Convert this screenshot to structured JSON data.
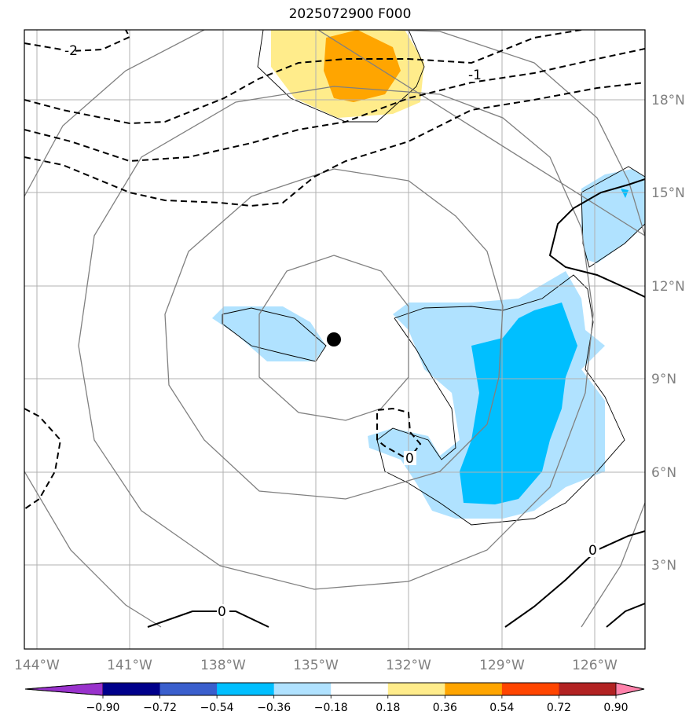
{
  "title": "2025072900 F000",
  "lon_labels": [
    "144°W",
    "141°W",
    "138°W",
    "135°W",
    "132°W",
    "129°W",
    "126°W"
  ],
  "lat_labels": [
    "18°N",
    "15°N",
    "12°N",
    "9°N",
    "6°N",
    "3°N"
  ],
  "colorbar": {
    "ticks": [
      "−0.90",
      "−0.72",
      "−0.54",
      "−0.36",
      "−0.18",
      "0.18",
      "0.36",
      "0.54",
      "0.72",
      "0.90"
    ],
    "colors": [
      "#9932cc",
      "#00008b",
      "#3a5fcd",
      "#00bfff",
      "#b0e2ff",
      "#ffffff",
      "#ffec8b",
      "#ffa500",
      "#ff4500",
      "#b22222",
      "#ff82ab"
    ]
  },
  "contour_labels": {
    "a": "-2",
    "b": "-1",
    "c": "0",
    "d": "0",
    "e": "0"
  },
  "colors": {
    "light_blue": "#b0e2ff",
    "mid_blue": "#00bfff",
    "light_yellow": "#ffec8b",
    "orange": "#ffa500",
    "grid": "#b0b0b0",
    "ring": "#808080"
  }
}
